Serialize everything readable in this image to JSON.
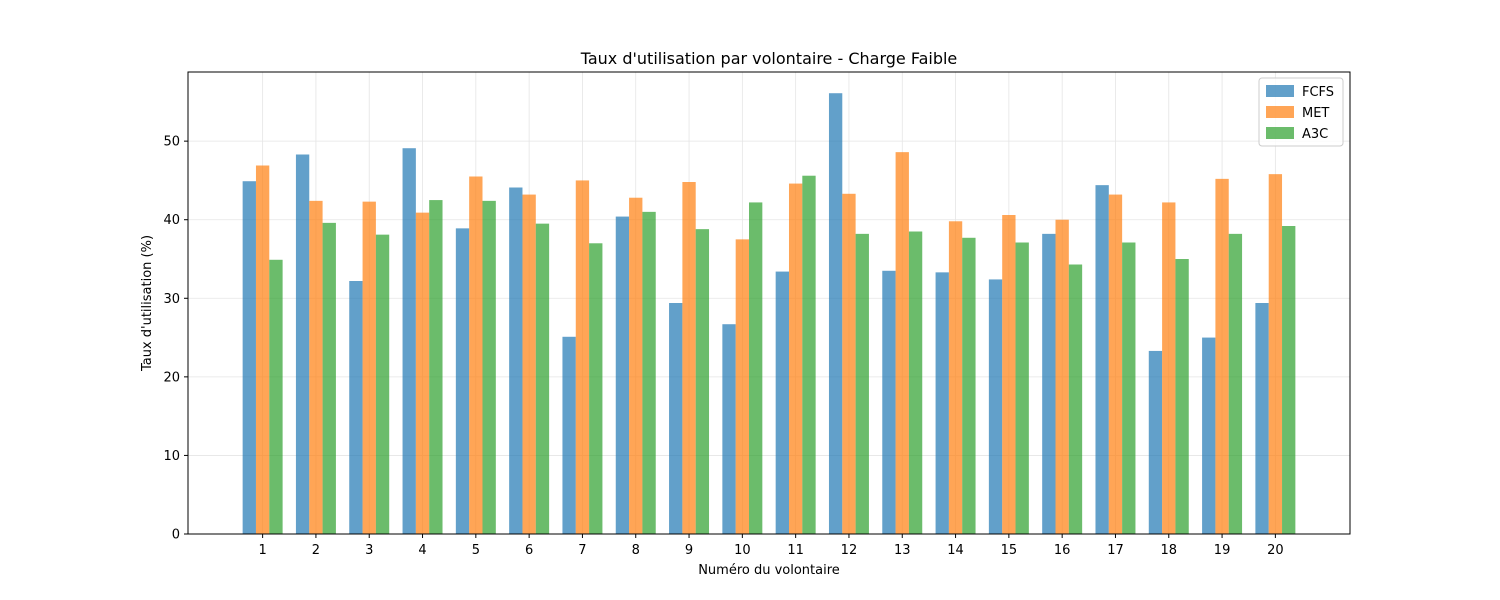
{
  "chart_data": {
    "type": "bar",
    "title": "Taux d'utilisation par volontaire - Charge Faible",
    "xlabel": "Numéro du volontaire",
    "ylabel": "Taux d'utilisation (%)",
    "categories": [
      "1",
      "2",
      "3",
      "4",
      "5",
      "6",
      "7",
      "8",
      "9",
      "10",
      "11",
      "12",
      "13",
      "14",
      "15",
      "16",
      "17",
      "18",
      "19",
      "20"
    ],
    "ylim": [
      0,
      58.8
    ],
    "yticks": [
      0,
      10,
      20,
      30,
      40,
      50
    ],
    "grid": true,
    "legend_position": "top-right",
    "series": [
      {
        "name": "FCFS",
        "color": "#1f77b4",
        "values": [
          44.9,
          48.3,
          32.2,
          49.1,
          38.9,
          44.1,
          25.1,
          40.4,
          29.4,
          26.7,
          33.4,
          56.1,
          33.5,
          33.3,
          32.4,
          38.2,
          44.4,
          23.3,
          25.0,
          29.4
        ]
      },
      {
        "name": "MET",
        "color": "#ff7f0e",
        "values": [
          46.9,
          42.4,
          42.3,
          40.9,
          45.5,
          43.2,
          45.0,
          42.8,
          44.8,
          37.5,
          44.6,
          43.3,
          48.6,
          39.8,
          40.6,
          40.0,
          43.2,
          42.2,
          45.2,
          45.8
        ]
      },
      {
        "name": "A3C",
        "color": "#2ca02c",
        "values": [
          34.9,
          39.6,
          38.1,
          42.5,
          42.4,
          39.5,
          37.0,
          41.0,
          38.8,
          42.2,
          45.6,
          38.2,
          38.5,
          37.7,
          37.1,
          34.3,
          37.1,
          35.0,
          38.2,
          39.2
        ]
      }
    ]
  }
}
